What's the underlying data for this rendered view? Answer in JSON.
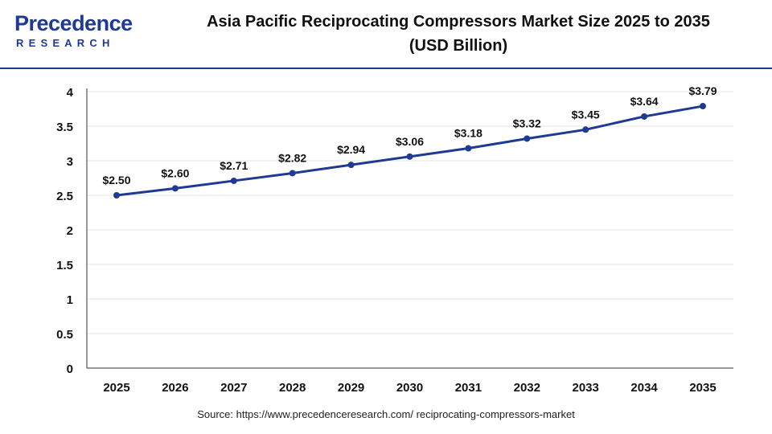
{
  "header": {
    "logo_main": "Precedence",
    "logo_sub": "RESEARCH",
    "title_line1": "Asia Pacific Reciprocating Compressors Market Size 2025 to 2035",
    "title_line2": "(USD Billion)"
  },
  "source_text": "Source: https://www.precedenceresearch.com/ reciprocating-compressors-market",
  "colors": {
    "accent": "#1f3a93",
    "line": "#1f3a93",
    "grid": "#e6e6e6",
    "axis": "#333333"
  },
  "chart_data": {
    "type": "line",
    "x": [
      "2025",
      "2026",
      "2027",
      "2028",
      "2029",
      "2030",
      "2031",
      "2032",
      "2033",
      "2034",
      "2035"
    ],
    "series": [
      {
        "values": [
          2.5,
          2.6,
          2.71,
          2.82,
          2.94,
          3.06,
          3.18,
          3.32,
          3.45,
          3.64,
          3.79
        ]
      }
    ],
    "data_labels": [
      "$2.50",
      "$2.60",
      "$2.71",
      "$2.82",
      "$2.94",
      "$3.06",
      "$3.18",
      "$3.32",
      "$3.45",
      "$3.64",
      "$3.79"
    ],
    "y_ticks": [
      "0",
      "0.5",
      "1",
      "1.5",
      "2",
      "2.5",
      "3",
      "3.5",
      "4"
    ],
    "ylim": [
      0,
      4
    ],
    "grid": true,
    "xlabel": "",
    "ylabel": ""
  }
}
